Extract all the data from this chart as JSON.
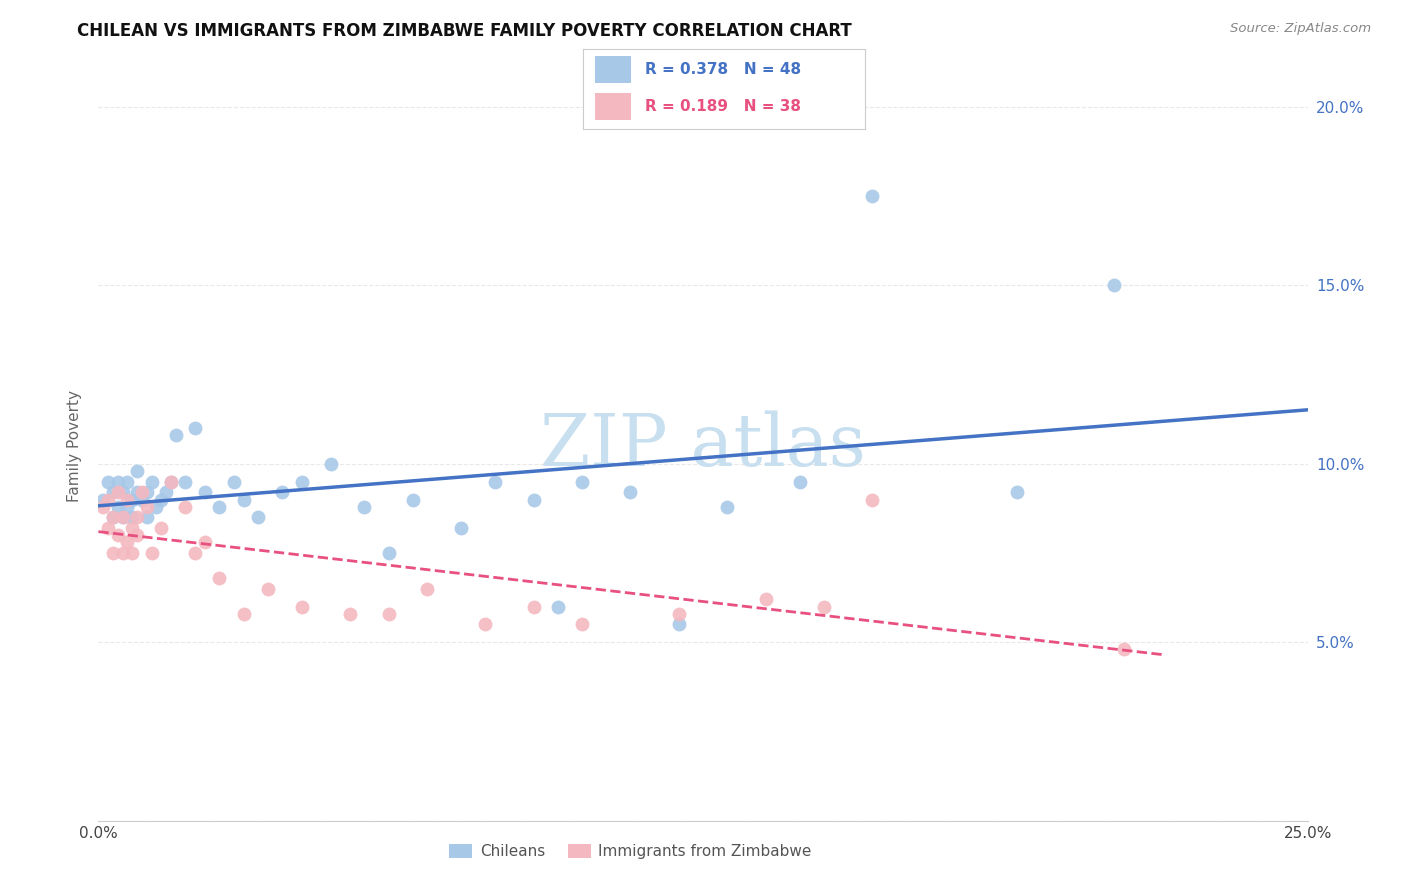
{
  "title": "CHILEAN VS IMMIGRANTS FROM ZIMBABWE FAMILY POVERTY CORRELATION CHART",
  "source": "Source: ZipAtlas.com",
  "ylabel": "Family Poverty",
  "xlim": [
    0.0,
    0.25
  ],
  "ylim": [
    0.0,
    0.21
  ],
  "x_ticks": [
    0.0,
    0.05,
    0.1,
    0.15,
    0.2,
    0.25
  ],
  "x_tick_labels": [
    "0.0%",
    "",
    "",
    "",
    "",
    "25.0%"
  ],
  "y_tick_vals": [
    0.0,
    0.05,
    0.1,
    0.15,
    0.2
  ],
  "y_right_labels": [
    "",
    "5.0%",
    "10.0%",
    "15.0%",
    "20.0%"
  ],
  "legend_r1": "R = 0.378",
  "legend_n1": "N = 48",
  "legend_r2": "R = 0.189",
  "legend_n2": "N = 38",
  "color_chileans": "#a8c8e8",
  "color_zimbabwe": "#f4b8c0",
  "line_color_chileans": "#4472c4",
  "line_color_zimbabwe": "#e85080",
  "watermark_color": "#c8dff0",
  "background_color": "#ffffff",
  "grid_color": "#e8e8e8",
  "chileans_x": [
    0.001,
    0.002,
    0.003,
    0.003,
    0.004,
    0.004,
    0.005,
    0.005,
    0.006,
    0.006,
    0.007,
    0.007,
    0.008,
    0.008,
    0.009,
    0.01,
    0.01,
    0.011,
    0.012,
    0.013,
    0.014,
    0.015,
    0.016,
    0.018,
    0.02,
    0.022,
    0.025,
    0.028,
    0.03,
    0.033,
    0.038,
    0.042,
    0.048,
    0.055,
    0.06,
    0.065,
    0.075,
    0.082,
    0.09,
    0.095,
    0.1,
    0.11,
    0.12,
    0.13,
    0.145,
    0.16,
    0.19,
    0.21
  ],
  "chileans_y": [
    0.09,
    0.095,
    0.085,
    0.092,
    0.088,
    0.095,
    0.085,
    0.092,
    0.088,
    0.095,
    0.09,
    0.085,
    0.092,
    0.098,
    0.09,
    0.085,
    0.092,
    0.095,
    0.088,
    0.09,
    0.092,
    0.095,
    0.108,
    0.095,
    0.11,
    0.092,
    0.088,
    0.095,
    0.09,
    0.085,
    0.092,
    0.095,
    0.1,
    0.088,
    0.075,
    0.09,
    0.082,
    0.095,
    0.09,
    0.06,
    0.095,
    0.092,
    0.055,
    0.088,
    0.095,
    0.175,
    0.092,
    0.15
  ],
  "zimbabwe_x": [
    0.001,
    0.002,
    0.002,
    0.003,
    0.003,
    0.004,
    0.004,
    0.005,
    0.005,
    0.006,
    0.006,
    0.007,
    0.007,
    0.008,
    0.008,
    0.009,
    0.01,
    0.011,
    0.013,
    0.015,
    0.018,
    0.02,
    0.022,
    0.025,
    0.03,
    0.035,
    0.042,
    0.052,
    0.06,
    0.068,
    0.08,
    0.09,
    0.1,
    0.12,
    0.138,
    0.15,
    0.16,
    0.212
  ],
  "zimbabwe_y": [
    0.088,
    0.082,
    0.09,
    0.075,
    0.085,
    0.08,
    0.092,
    0.075,
    0.085,
    0.078,
    0.09,
    0.082,
    0.075,
    0.085,
    0.08,
    0.092,
    0.088,
    0.075,
    0.082,
    0.095,
    0.088,
    0.075,
    0.078,
    0.068,
    0.058,
    0.065,
    0.06,
    0.058,
    0.058,
    0.065,
    0.055,
    0.06,
    0.055,
    0.058,
    0.062,
    0.06,
    0.09,
    0.048
  ]
}
